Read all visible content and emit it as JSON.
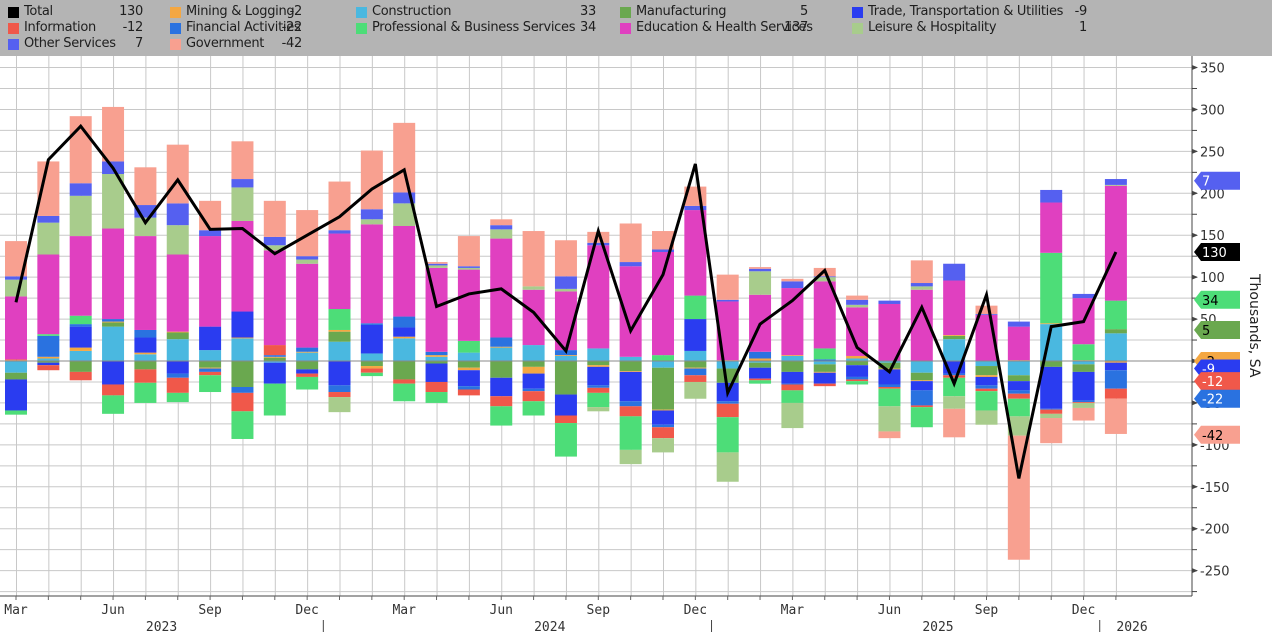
{
  "chart_data": {
    "type": "bar",
    "stacked": true,
    "title": "",
    "ylabel": "Thousands, SA",
    "xlabel": "",
    "ylim": [
      -280,
      360
    ],
    "yticks": [
      350,
      300,
      250,
      200,
      150,
      100,
      50,
      0,
      -50,
      -100,
      -150,
      -200,
      -250
    ],
    "grid": true,
    "legend_position": "top",
    "x_tick_labels": [
      {
        "index": 0,
        "label": "Mar"
      },
      {
        "index": 3,
        "label": "Jun"
      },
      {
        "index": 6,
        "label": "Sep"
      },
      {
        "index": 9,
        "label": "Dec"
      },
      {
        "index": 12,
        "label": "Mar"
      },
      {
        "index": 15,
        "label": "Jun"
      },
      {
        "index": 18,
        "label": "Sep"
      },
      {
        "index": 21,
        "label": "Dec"
      },
      {
        "index": 24,
        "label": "Mar"
      },
      {
        "index": 27,
        "label": "Jun"
      },
      {
        "index": 30,
        "label": "Sep"
      },
      {
        "index": 33,
        "label": "Dec"
      }
    ],
    "year_labels": [
      {
        "center_index": 4.5,
        "label": "2023"
      },
      {
        "center_index": 16.5,
        "label": "2024"
      },
      {
        "center_index": 28.5,
        "label": "2025"
      },
      {
        "center_index": 34.5,
        "label": "2026"
      }
    ],
    "year_separators": [
      9.5,
      21.5,
      33.5
    ],
    "categories": [
      "2023-03",
      "2023-04",
      "2023-05",
      "2023-06",
      "2023-07",
      "2023-08",
      "2023-09",
      "2023-10",
      "2023-11",
      "2023-12",
      "2024-01",
      "2024-02",
      "2024-03",
      "2024-04",
      "2024-05",
      "2024-06",
      "2024-07",
      "2024-08",
      "2024-09",
      "2024-10",
      "2024-11",
      "2024-12",
      "2025-01",
      "2025-02",
      "2025-03",
      "2025-04",
      "2025-05",
      "2025-06",
      "2025-07",
      "2025-08",
      "2025-09",
      "2025-10",
      "2025-11",
      "2025-12",
      "2026-01"
    ],
    "series": [
      {
        "name": "Construction",
        "color": "#4ab8e0",
        "latest": "33",
        "values": [
          -14,
          3,
          12,
          41,
          8,
          26,
          13,
          27,
          -2,
          10,
          23,
          9,
          27,
          5,
          10,
          16,
          19,
          6,
          15,
          5,
          -8,
          12,
          -9,
          -2,
          6,
          -4,
          3,
          -2,
          -14,
          26,
          -6,
          -17,
          44,
          -4,
          33
        ]
      },
      {
        "name": "Manufacturing",
        "color": "#6aa84f",
        "latest": "5",
        "values": [
          -8,
          -2,
          -13,
          5,
          -10,
          8,
          -8,
          -31,
          4,
          -10,
          12,
          -6,
          -22,
          -3,
          -8,
          -20,
          -7,
          -40,
          -5,
          -12,
          -50,
          -8,
          -17,
          -6,
          -13,
          -9,
          -5,
          -7,
          -9,
          4,
          -11,
          -7,
          -7,
          -9,
          5
        ]
      },
      {
        "name": "Mining & Logging",
        "color": "#f4a742",
        "latest": "-2",
        "values": [
          1,
          2,
          4,
          1,
          2,
          1,
          -1,
          1,
          1,
          1,
          2,
          -3,
          2,
          2,
          -3,
          1,
          -8,
          1,
          -2,
          -1,
          -1,
          -1,
          1,
          3,
          1,
          -1,
          3,
          -1,
          -1,
          1,
          -2,
          1,
          1,
          1,
          -2
        ]
      },
      {
        "name": "Trade, Transportation & Utilities",
        "color": "#2a3cf0",
        "latest": "-9",
        "values": [
          -37,
          -3,
          25,
          -28,
          18,
          -15,
          28,
          31,
          -25,
          -5,
          -29,
          34,
          11,
          -22,
          -19,
          -22,
          -18,
          -25,
          -22,
          -35,
          -17,
          38,
          -22,
          -13,
          -14,
          -13,
          -14,
          -18,
          -11,
          -15,
          -10,
          -11,
          -50,
          -34,
          -9
        ]
      },
      {
        "name": "Financial Activities",
        "color": "#2a72e0",
        "latest": "-22",
        "values": [
          0,
          25,
          3,
          3,
          9,
          -5,
          -4,
          -7,
          2,
          5,
          -8,
          2,
          13,
          4,
          -4,
          11,
          -3,
          6,
          -3,
          -6,
          -3,
          -8,
          -3,
          8,
          -1,
          2,
          -3,
          -3,
          -18,
          -2,
          -4,
          -4,
          -1,
          -2,
          -22
        ]
      },
      {
        "name": "Information",
        "color": "#f0584a",
        "latest": "-12",
        "values": [
          1,
          -6,
          -10,
          -13,
          -16,
          -18,
          -4,
          -22,
          12,
          -4,
          -6,
          -5,
          -5,
          -12,
          -7,
          -12,
          -12,
          -9,
          -6,
          -12,
          -13,
          -8,
          -16,
          -2,
          -7,
          -3,
          -2,
          -2,
          -2,
          -3,
          -3,
          -6,
          -5,
          -1,
          -12
        ]
      },
      {
        "name": "Professional & Business Services",
        "color": "#4ddd78",
        "latest": "34",
        "values": [
          -5,
          2,
          10,
          -22,
          -24,
          -11,
          -20,
          -33,
          -38,
          -15,
          25,
          -4,
          -21,
          -13,
          14,
          -23,
          -17,
          -40,
          -17,
          -40,
          7,
          28,
          -42,
          -4,
          -15,
          13,
          -4,
          -21,
          -24,
          -22,
          -23,
          -21,
          84,
          19,
          34
        ]
      },
      {
        "name": "Education & Health Services",
        "color": "#e040c0",
        "latest": "137",
        "values": [
          75,
          95,
          95,
          108,
          112,
          92,
          108,
          108,
          113,
          100,
          90,
          118,
          108,
          100,
          85,
          118,
          66,
          70,
          123,
          108,
          123,
          102,
          70,
          68,
          80,
          80,
          58,
          68,
          85,
          65,
          55,
          40,
          60,
          55,
          137
        ]
      },
      {
        "name": "Leisure & Hospitality",
        "color": "#a8cc8c",
        "latest": "1",
        "values": [
          20,
          38,
          48,
          65,
          22,
          35,
          0,
          40,
          6,
          5,
          -18,
          6,
          27,
          3,
          2,
          11,
          4,
          3,
          -5,
          -17,
          -17,
          -20,
          -35,
          28,
          -30,
          5,
          3,
          -30,
          4,
          -15,
          -17,
          -23,
          -5,
          -6,
          1
        ]
      },
      {
        "name": "Other Services",
        "color": "#5560f0",
        "latest": "7",
        "values": [
          4,
          8,
          15,
          15,
          15,
          26,
          7,
          10,
          10,
          4,
          4,
          12,
          13,
          2,
          2,
          5,
          0,
          15,
          3,
          5,
          3,
          5,
          2,
          3,
          8,
          1,
          6,
          4,
          4,
          20,
          1,
          6,
          15,
          5,
          7
        ]
      },
      {
        "name": "Government",
        "color": "#f8a090",
        "latest": "-42",
        "values": [
          42,
          65,
          80,
          65,
          45,
          70,
          35,
          45,
          43,
          55,
          58,
          70,
          83,
          2,
          36,
          7,
          66,
          43,
          13,
          46,
          22,
          23,
          30,
          2,
          3,
          10,
          5,
          -8,
          27,
          -34,
          10,
          -148,
          -30,
          -15,
          -42
        ]
      }
    ],
    "line_series": {
      "name": "Total",
      "color": "#000000",
      "latest": "130",
      "values": [
        70,
        240,
        280,
        230,
        165,
        216,
        157,
        158,
        128,
        150,
        172,
        205,
        228,
        65,
        80,
        86,
        58,
        12,
        155,
        36,
        103,
        235,
        -38,
        44,
        72,
        108,
        16,
        -13,
        64,
        -27,
        79,
        -140,
        41,
        47,
        130
      ]
    }
  },
  "legend": [
    {
      "name": "Total",
      "value": "130",
      "color": "#000000"
    },
    {
      "name": "Mining & Logging",
      "value": "-2",
      "color": "#f4a742"
    },
    {
      "name": "Construction",
      "value": "33",
      "color": "#4ab8e0"
    },
    {
      "name": "Manufacturing",
      "value": "5",
      "color": "#6aa84f"
    },
    {
      "name": "Trade, Transportation & Utilities",
      "value": "-9",
      "color": "#2a3cf0"
    },
    {
      "name": "Information",
      "value": "-12",
      "color": "#f0584a"
    },
    {
      "name": "Financial Activities",
      "value": "-22",
      "color": "#2a72e0"
    },
    {
      "name": "Professional & Business Services",
      "value": "34",
      "color": "#4ddd78"
    },
    {
      "name": "Education & Health Services",
      "value": "137",
      "color": "#e040c0"
    },
    {
      "name": "Leisure & Hospitality",
      "value": "1",
      "color": "#a8cc8c"
    },
    {
      "name": "Other Services",
      "value": "7",
      "color": "#5560f0"
    },
    {
      "name": "Government",
      "value": "-42",
      "color": "#f8a090"
    }
  ],
  "value_tags": [
    {
      "label": "7",
      "color": "#5560f0",
      "text_color": "#ffffff",
      "y": 215
    },
    {
      "label": "130",
      "color": "#000000",
      "text_color": "#ffffff",
      "y": 130
    },
    {
      "label": "34",
      "color": "#4ddd78",
      "text_color": "#000000",
      "y": 73
    },
    {
      "label": "5",
      "color": "#6aa84f",
      "text_color": "#000000",
      "y": 37
    },
    {
      "label": "-2",
      "color": "#f4a742",
      "text_color": "#000000",
      "y": 0
    },
    {
      "label": "-9",
      "color": "#2a3cf0",
      "text_color": "#ffffff",
      "y": -9
    },
    {
      "label": "-12",
      "color": "#f0584a",
      "text_color": "#ffffff",
      "y": -24
    },
    {
      "label": "-22",
      "color": "#2a72e0",
      "text_color": "#ffffff",
      "y": -45
    },
    {
      "label": "-42",
      "color": "#f8a090",
      "text_color": "#000000",
      "y": -88
    }
  ]
}
